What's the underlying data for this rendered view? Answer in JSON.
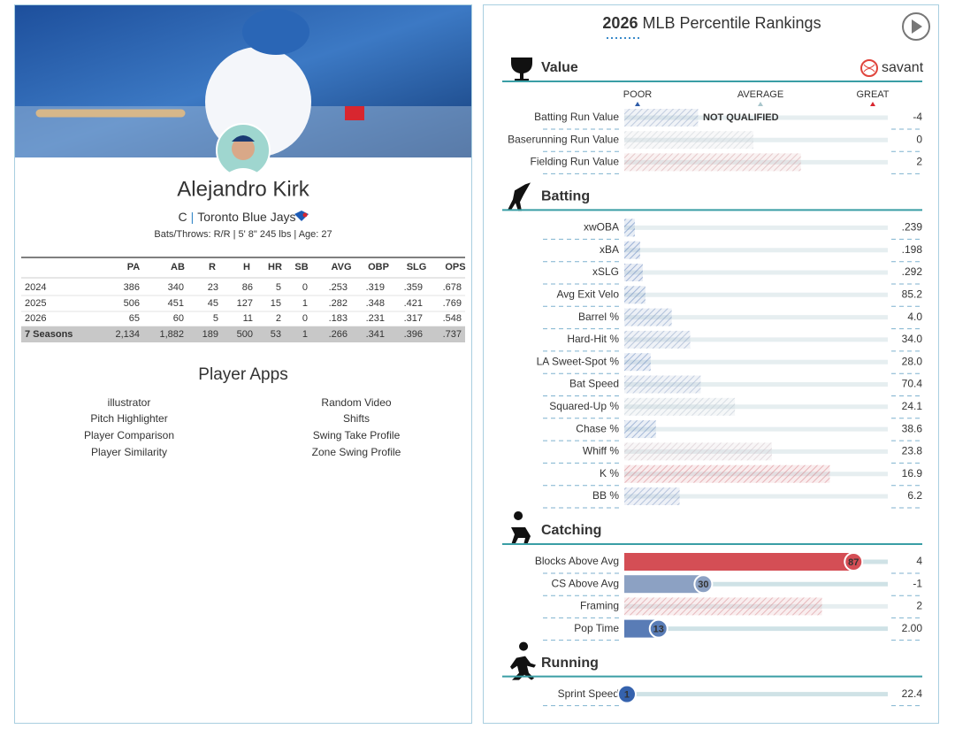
{
  "player": {
    "name": "Alejandro Kirk",
    "position": "C",
    "separator": "|",
    "team": "Toronto Blue Jays",
    "bio": "Bats/Throws: R/R | 5' 8\" 245 lbs | Age: 27"
  },
  "stats_table": {
    "columns": [
      "PA",
      "AB",
      "R",
      "H",
      "HR",
      "SB",
      "AVG",
      "OBP",
      "SLG",
      "OPS"
    ],
    "rows": [
      {
        "season": "2024",
        "cells": [
          "386",
          "340",
          "23",
          "86",
          "5",
          "0",
          ".253",
          ".319",
          ".359",
          ".678"
        ]
      },
      {
        "season": "2025",
        "cells": [
          "506",
          "451",
          "45",
          "127",
          "15",
          "1",
          ".282",
          ".348",
          ".421",
          ".769"
        ]
      },
      {
        "season": "2026",
        "cells": [
          "65",
          "60",
          "5",
          "11",
          "2",
          "0",
          ".183",
          ".231",
          ".317",
          ".548"
        ]
      },
      {
        "season": "7 Seasons",
        "cells": [
          "2,134",
          "1,882",
          "189",
          "500",
          "53",
          "1",
          ".266",
          ".341",
          ".396",
          ".737"
        ],
        "total": true
      }
    ]
  },
  "player_apps": {
    "title": "Player Apps",
    "left": [
      "illustrator",
      "Pitch Highlighter",
      "Player Comparison",
      "Player Similarity"
    ],
    "right": [
      "Random Video",
      "Shifts",
      "Swing Take Profile",
      "Zone Swing Profile"
    ]
  },
  "rankings": {
    "season": "2026",
    "title": "MLB Percentile Rankings",
    "brand": "savant",
    "scale": [
      "POOR",
      "AVERAGE",
      "GREAT"
    ],
    "sections": [
      {
        "title": "Value",
        "metrics": [
          {
            "name": "Batting Run Value",
            "value": "-4",
            "percentile": 28,
            "qualified": false,
            "note": "NOT QUALIFIED"
          },
          {
            "name": "Baserunning Run Value",
            "value": "0",
            "percentile": 49,
            "qualified": false
          },
          {
            "name": "Fielding Run Value",
            "value": "2",
            "percentile": 67,
            "qualified": false
          }
        ]
      },
      {
        "title": "Batting",
        "metrics": [
          {
            "name": "xwOBA",
            "value": ".239",
            "percentile": 4,
            "qualified": false
          },
          {
            "name": "xBA",
            "value": ".198",
            "percentile": 6,
            "qualified": false
          },
          {
            "name": "xSLG",
            "value": ".292",
            "percentile": 7,
            "qualified": false
          },
          {
            "name": "Avg Exit Velo",
            "value": "85.2",
            "percentile": 8,
            "qualified": false
          },
          {
            "name": "Barrel %",
            "value": "4.0",
            "percentile": 18,
            "qualified": false
          },
          {
            "name": "Hard-Hit %",
            "value": "34.0",
            "percentile": 25,
            "qualified": false
          },
          {
            "name": "LA Sweet-Spot %",
            "value": "28.0",
            "percentile": 10,
            "qualified": false
          },
          {
            "name": "Bat Speed",
            "value": "70.4",
            "percentile": 29,
            "qualified": false
          },
          {
            "name": "Squared-Up %",
            "value": "24.1",
            "percentile": 42,
            "qualified": false
          },
          {
            "name": "Chase %",
            "value": "38.6",
            "percentile": 12,
            "qualified": false
          },
          {
            "name": "Whiff %",
            "value": "23.8",
            "percentile": 56,
            "qualified": false
          },
          {
            "name": "K %",
            "value": "16.9",
            "percentile": 78,
            "qualified": false
          },
          {
            "name": "BB %",
            "value": "6.2",
            "percentile": 21,
            "qualified": false
          }
        ]
      },
      {
        "title": "Catching",
        "metrics": [
          {
            "name": "Blocks Above Avg",
            "value": "4",
            "percentile": 87,
            "qualified": true
          },
          {
            "name": "CS Above Avg",
            "value": "-1",
            "percentile": 30,
            "qualified": true
          },
          {
            "name": "Framing",
            "value": "2",
            "percentile": 75,
            "qualified": false
          },
          {
            "name": "Pop Time",
            "value": "2.00",
            "percentile": 13,
            "qualified": true
          }
        ]
      },
      {
        "title": "Running",
        "metrics": [
          {
            "name": "Sprint Speed",
            "value": "22.4",
            "percentile": 1,
            "qualified": true
          }
        ]
      }
    ]
  }
}
